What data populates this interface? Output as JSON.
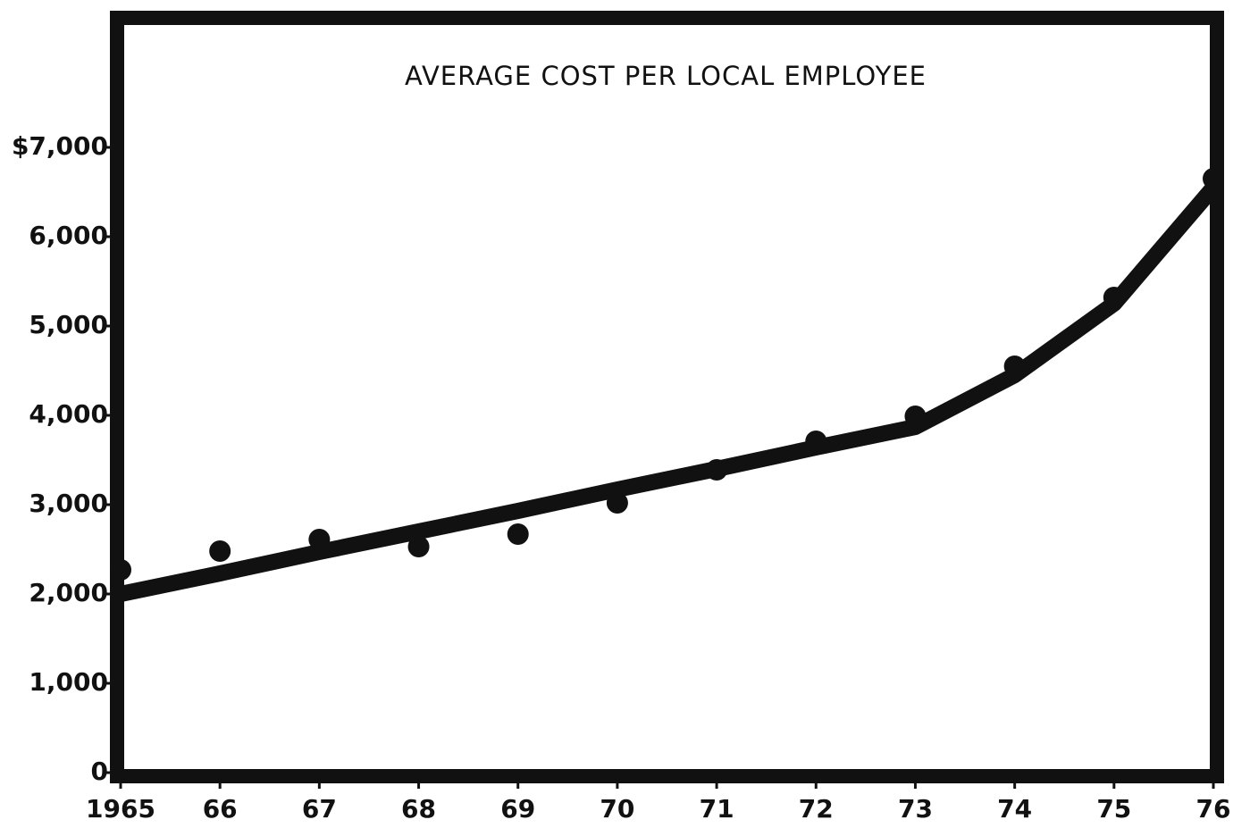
{
  "chart_data": {
    "type": "line",
    "title": "AVERAGE COST PER LOCAL EMPLOYEE",
    "categories": [
      "1965",
      "66",
      "67",
      "68",
      "69",
      "70",
      "71",
      "72",
      "73",
      "74",
      "75",
      "76"
    ],
    "series": [
      {
        "kind": "markers",
        "color": "#111111",
        "values": [
          2270,
          2480,
          2610,
          2530,
          2670,
          3020,
          3390,
          3710,
          3990,
          4550,
          5320,
          6650
        ]
      },
      {
        "kind": "line",
        "color": "#111111",
        "values": [
          2000,
          2230,
          2470,
          2700,
          2930,
          3170,
          3400,
          3640,
          3870,
          4450,
          5250,
          6550
        ]
      }
    ],
    "ylim": [
      0,
      8450
    ],
    "yticks": [
      0,
      {
        "value": 1000,
        "label": "1,000"
      },
      {
        "value": 2000,
        "label": "2,000"
      },
      {
        "value": 3000,
        "label": "3,000"
      },
      {
        "value": 4000,
        "label": "4,000"
      },
      {
        "value": 5000,
        "label": "5,000"
      },
      {
        "value": 6000,
        "label": "6,000"
      },
      {
        "value": 7000,
        "label": "$7,000"
      }
    ],
    "grid": false
  }
}
